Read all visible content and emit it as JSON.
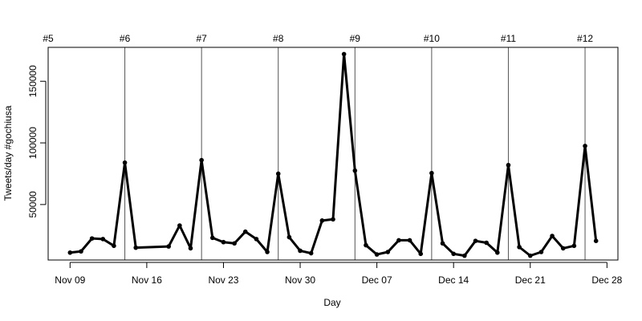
{
  "chart_data": {
    "type": "line",
    "xlabel": "Day",
    "ylabel": "Tweets/day #gochiusa",
    "x_ticks": [
      "Nov 09",
      "Nov 16",
      "Nov 23",
      "Nov 30",
      "Dec 07",
      "Dec 14",
      "Dec 21",
      "Dec 28"
    ],
    "y_ticks": [
      50000,
      100000,
      150000
    ],
    "y_tick_labels": [
      "50000",
      "100000",
      "150000"
    ],
    "xlim": [
      "2014-11-07",
      "2014-12-29"
    ],
    "ylim": [
      5000,
      177500
    ],
    "grid": false,
    "series": [
      {
        "dates": [
          "2014-11-09",
          "2014-11-10",
          "2014-11-11",
          "2014-11-12",
          "2014-11-13",
          "2014-11-14",
          "2014-11-15",
          "2014-11-18",
          "2014-11-19",
          "2014-11-20",
          "2014-11-21",
          "2014-11-22",
          "2014-11-23",
          "2014-11-24",
          "2014-11-25",
          "2014-11-26",
          "2014-11-27",
          "2014-11-28",
          "2014-11-29",
          "2014-11-30",
          "2014-12-01",
          "2014-12-02",
          "2014-12-03",
          "2014-12-04",
          "2014-12-05",
          "2014-12-06",
          "2014-12-07",
          "2014-12-08",
          "2014-12-09",
          "2014-12-10",
          "2014-12-11",
          "2014-12-12",
          "2014-12-13",
          "2014-12-14",
          "2014-12-15",
          "2014-12-16",
          "2014-12-17",
          "2014-12-18",
          "2014-12-19",
          "2014-12-20",
          "2014-12-21",
          "2014-12-22",
          "2014-12-23",
          "2014-12-24",
          "2014-12-25",
          "2014-12-26",
          "2014-12-27"
        ],
        "values": [
          11000,
          12000,
          22500,
          22000,
          16500,
          84000,
          15000,
          16000,
          33000,
          14500,
          86000,
          23000,
          19500,
          18500,
          28000,
          22000,
          11500,
          75000,
          23500,
          12500,
          10500,
          37000,
          38000,
          172000,
          77500,
          17000,
          9500,
          11500,
          21000,
          21000,
          10000,
          75500,
          18500,
          10000,
          8500,
          20500,
          19000,
          11000,
          82000,
          15500,
          8500,
          11500,
          24500,
          14500,
          16500,
          97500,
          20500
        ]
      }
    ],
    "episode_markers": [
      {
        "label": "#5",
        "date": "2014-11-07"
      },
      {
        "label": "#6",
        "date": "2014-11-14"
      },
      {
        "label": "#7",
        "date": "2014-11-21"
      },
      {
        "label": "#8",
        "date": "2014-11-28"
      },
      {
        "label": "#9",
        "date": "2014-12-05"
      },
      {
        "label": "#10",
        "date": "2014-12-12"
      },
      {
        "label": "#11",
        "date": "2014-12-19"
      },
      {
        "label": "#12",
        "date": "2014-12-26"
      }
    ],
    "colors": {
      "line": "#000000",
      "marker_line": "#555555",
      "axis": "#000000"
    }
  }
}
